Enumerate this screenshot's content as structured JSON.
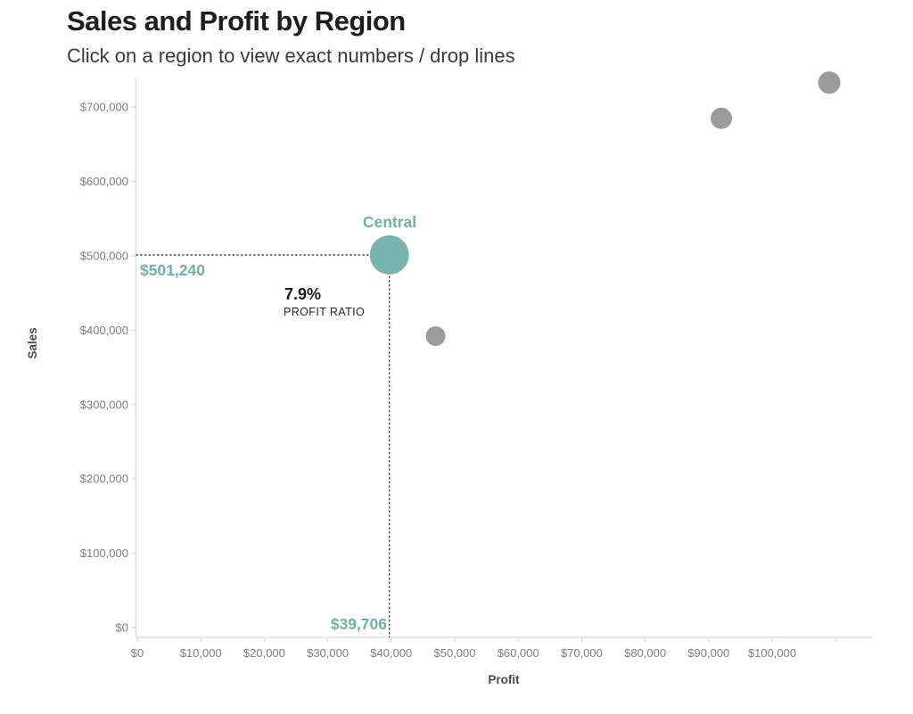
{
  "header": {
    "title": "Sales and Profit by Region",
    "subtitle": "Click on a region to view exact numbers / drop lines"
  },
  "chart_data": {
    "type": "scatter",
    "title": "Sales and Profit by Region",
    "xlabel": "Profit",
    "ylabel": "Sales",
    "xlim": [
      0,
      116500
    ],
    "ylim": [
      0,
      738000
    ],
    "grid": false,
    "x_ticks": {
      "values": [
        0,
        10000,
        20000,
        30000,
        40000,
        50000,
        60000,
        70000,
        80000,
        90000,
        100000,
        110000
      ],
      "labels": [
        "$0",
        "$10,000",
        "$20,000",
        "$30,000",
        "$40,000",
        "$50,000",
        "$60,000",
        "$70,000",
        "$80,000",
        "$90,000",
        "$100,000",
        ""
      ]
    },
    "y_ticks": {
      "values": [
        0,
        100000,
        200000,
        300000,
        400000,
        500000,
        600000,
        700000
      ],
      "labels": [
        "$0",
        "$100,000",
        "$200,000",
        "$300,000",
        "$400,000",
        "$500,000",
        "$600,000",
        "$700,000"
      ]
    },
    "points": [
      {
        "name": "Central",
        "profit": 39706,
        "sales": 501240,
        "radius": 22,
        "selected": true,
        "drop_lines": true
      },
      {
        "name": "",
        "profit": 47000,
        "sales": 392000,
        "radius": 11,
        "selected": false,
        "drop_lines": false
      },
      {
        "name": "",
        "profit": 92000,
        "sales": 685000,
        "radius": 12,
        "selected": false,
        "drop_lines": false
      },
      {
        "name": "",
        "profit": 109000,
        "sales": 733000,
        "radius": 12.5,
        "selected": false,
        "drop_lines": false
      }
    ]
  },
  "annotations": {
    "region": "Central",
    "sales_value": "$501,240",
    "profit_value": "$39,706",
    "ratio_value": "7.9%",
    "ratio_caption": "PROFIT RATIO"
  },
  "colors": {
    "selected": "#77b5ae",
    "selected_text": "#6fb0a8",
    "unselected": "#9b9b9b",
    "axis_line": "#d8d8d8",
    "tick_label": "#7e7e7e",
    "drop_line": "#2f2f2f"
  }
}
